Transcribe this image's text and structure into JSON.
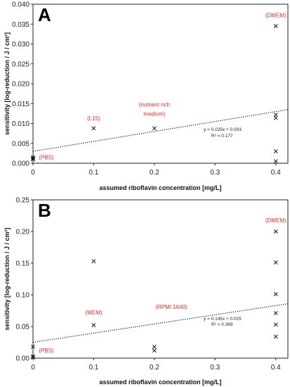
{
  "chart_data": [
    {
      "type": "scatter",
      "panel_label": "A",
      "xlabel": "assumed riboflavin concentration [mg/L]",
      "ylabel": "sensitivity [log-reduction / J / cm²]",
      "xlim": [
        0,
        0.42
      ],
      "ylim": [
        0,
        0.04
      ],
      "x_ticks": [
        "0",
        "0.1",
        "0.2",
        "0.3",
        "0.4"
      ],
      "y_ticks": [
        "0.000",
        "0.005",
        "0.010",
        "0.015",
        "0.020",
        "0.025",
        "0.030",
        "0.035",
        "0.040"
      ],
      "grid": false,
      "points": [
        {
          "x": 0,
          "y": 0.0015
        },
        {
          "x": 0,
          "y": 0.0012
        },
        {
          "x": 0,
          "y": 0.001
        },
        {
          "x": 0.1,
          "y": 0.0088
        },
        {
          "x": 0.2,
          "y": 0.0088
        },
        {
          "x": 0.4,
          "y": 0.0345
        },
        {
          "x": 0.4,
          "y": 0.0122
        },
        {
          "x": 0.4,
          "y": 0.0114
        },
        {
          "x": 0.4,
          "y": 0.003
        },
        {
          "x": 0.4,
          "y": 0.0005
        }
      ],
      "trendline": {
        "slope": 0.025,
        "intercept": 0.003,
        "style": "dotted"
      },
      "equation_label": "y = 0.025x + 0.003",
      "r2_label": "R² = 0.177",
      "annotations": [
        {
          "text": "(DMEM)",
          "x": 0.4,
          "y": 0.0373
        },
        {
          "text": "(L15)",
          "x": 0.1,
          "y": 0.0113
        },
        {
          "text": "(nutrient rich",
          "x": 0.2,
          "y": 0.0148
        },
        {
          "text": "medium)",
          "x": 0.2,
          "y": 0.0125
        },
        {
          "text": "(PBS)",
          "x": 0.022,
          "y": 0.0015
        }
      ]
    },
    {
      "type": "scatter",
      "panel_label": "B",
      "xlabel": "assumed riboflavin concentration [mg/L]",
      "ylabel": "sensitivity [log-reduction / J / cm²]",
      "xlim": [
        0,
        0.42
      ],
      "ylim": [
        0,
        0.25
      ],
      "x_ticks": [
        "0",
        "0.1",
        "0.2",
        "0.3",
        "0.4"
      ],
      "y_ticks": [
        "0.00",
        "0.05",
        "0.10",
        "0.15",
        "0.20",
        "0.25"
      ],
      "grid": false,
      "points": [
        {
          "x": 0,
          "y": 0.018
        },
        {
          "x": 0,
          "y": 0.003
        },
        {
          "x": 0,
          "y": 0.001
        },
        {
          "x": 0.1,
          "y": 0.153
        },
        {
          "x": 0.1,
          "y": 0.052
        },
        {
          "x": 0.2,
          "y": 0.018
        },
        {
          "x": 0.2,
          "y": 0.012
        },
        {
          "x": 0.4,
          "y": 0.2
        },
        {
          "x": 0.4,
          "y": 0.151
        },
        {
          "x": 0.4,
          "y": 0.101
        },
        {
          "x": 0.4,
          "y": 0.071
        },
        {
          "x": 0.4,
          "y": 0.053
        },
        {
          "x": 0.4,
          "y": 0.034
        }
      ],
      "trendline": {
        "slope": 0.145,
        "intercept": 0.025,
        "style": "dotted"
      },
      "equation_label": "y = 0.145x + 0.025",
      "r2_label": "R² = 0.369",
      "annotations": [
        {
          "text": "(DMEM)",
          "x": 0.4,
          "y": 0.218
        },
        {
          "text": "(MEM)",
          "x": 0.1,
          "y": 0.072
        },
        {
          "text": "(RPMI 1640)",
          "x": 0.228,
          "y": 0.081
        },
        {
          "text": "(PBS)",
          "x": 0.022,
          "y": 0.012
        }
      ]
    }
  ]
}
